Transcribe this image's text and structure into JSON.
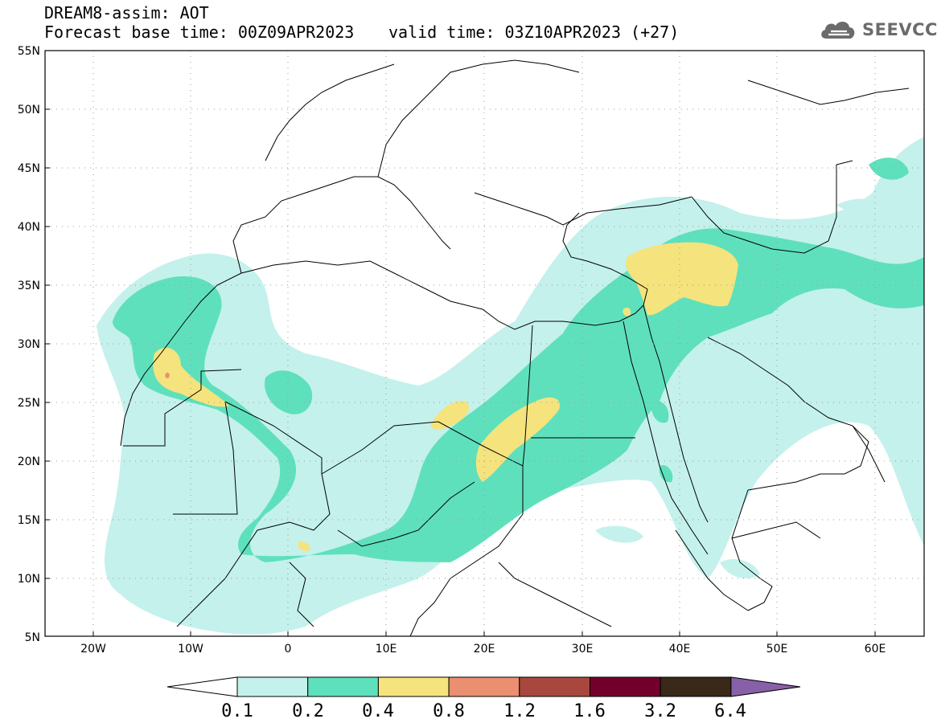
{
  "header": {
    "title": "DREAM8-assim: AOT",
    "base_time": "Forecast base time: 00Z09APR2023",
    "valid_time": "valid time: 03Z10APR2023 (+27)"
  },
  "logo": {
    "text": "SEEVCCC",
    "icon": "cloud-icon"
  },
  "map": {
    "lon_range": [
      -25,
      65
    ],
    "lat_range": [
      5,
      55
    ],
    "lat_labels": [
      "55N",
      "50N",
      "45N",
      "40N",
      "35N",
      "30N",
      "25N",
      "20N",
      "15N",
      "10N",
      "5N"
    ],
    "lon_labels": [
      "20W",
      "10W",
      "0",
      "10E",
      "20E",
      "30E",
      "40E",
      "50E",
      "60E"
    ],
    "grid": "dotted"
  },
  "colorbar": {
    "labels": [
      "0.1",
      "0.2",
      "0.4",
      "0.8",
      "1.2",
      "1.6",
      "3.2",
      "6.4"
    ],
    "colors": [
      "#c4f1ec",
      "#5fe0bc",
      "#f5e37d",
      "#ea9070",
      "#a8473d",
      "#72002a",
      "#3a2818",
      "#8860a8"
    ]
  }
}
